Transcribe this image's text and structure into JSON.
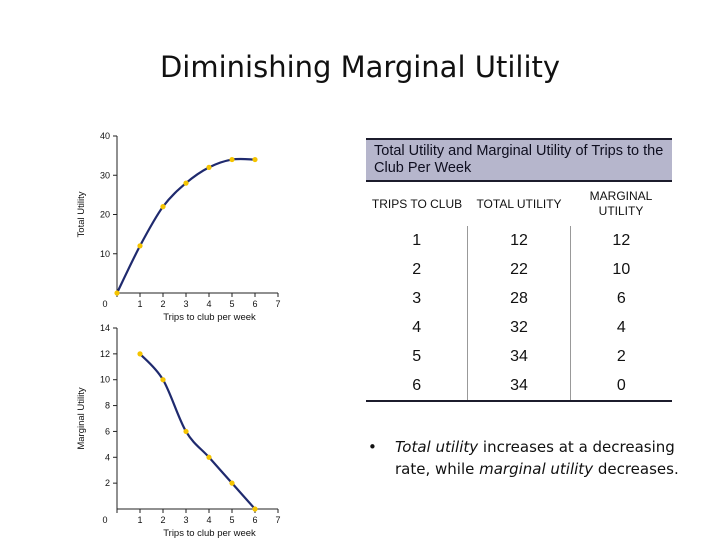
{
  "slide": {
    "title": "Diminishing Marginal Utility"
  },
  "chart_data": [
    {
      "type": "line",
      "x": [
        0,
        1,
        2,
        3,
        4,
        5,
        6
      ],
      "series": [
        {
          "values": [
            0,
            12,
            22,
            28,
            32,
            34,
            34
          ]
        }
      ],
      "xlabel": "Trips to club per week",
      "ylabel": "Total Utility",
      "xticks": [
        "0",
        "1",
        "2",
        "3",
        "4",
        "5",
        "6",
        "7"
      ],
      "yticks": [
        "10",
        "20",
        "30",
        "40"
      ],
      "xlim": [
        0,
        7
      ],
      "ylim": [
        0,
        40
      ],
      "grid": false,
      "colors": {
        "line": "#1f2a6e",
        "points": "#f5c400"
      }
    },
    {
      "type": "line",
      "x": [
        1,
        2,
        3,
        4,
        5,
        6
      ],
      "series": [
        {
          "values": [
            12,
            10,
            6,
            4,
            2,
            0
          ]
        }
      ],
      "xlabel": "Trips to club per week",
      "ylabel": "Marginal Utility",
      "xticks": [
        "0",
        "1",
        "2",
        "3",
        "4",
        "5",
        "6",
        "7"
      ],
      "yticks": [
        "2",
        "4",
        "6",
        "8",
        "10",
        "12",
        "14"
      ],
      "xlim": [
        0,
        7
      ],
      "ylim": [
        0,
        14
      ],
      "grid": false,
      "colors": {
        "line": "#1f2a6e",
        "points": "#f5c400"
      }
    }
  ],
  "table": {
    "title": "Total Utility and Marginal Utility of Trips to the Club Per Week",
    "headers": [
      "TRIPS TO CLUB",
      "TOTAL UTILITY",
      "MARGINAL UTILITY"
    ],
    "rows": [
      [
        "1",
        "12",
        "12"
      ],
      [
        "2",
        "22",
        "10"
      ],
      [
        "3",
        "28",
        "6"
      ],
      [
        "4",
        "32",
        "4"
      ],
      [
        "5",
        "34",
        "2"
      ],
      [
        "6",
        "34",
        "0"
      ]
    ]
  },
  "bullet": {
    "part1": "Total utility",
    "part2": " increases at a decreasing rate, while ",
    "part3": "marginal utility",
    "part4": " decreases."
  }
}
